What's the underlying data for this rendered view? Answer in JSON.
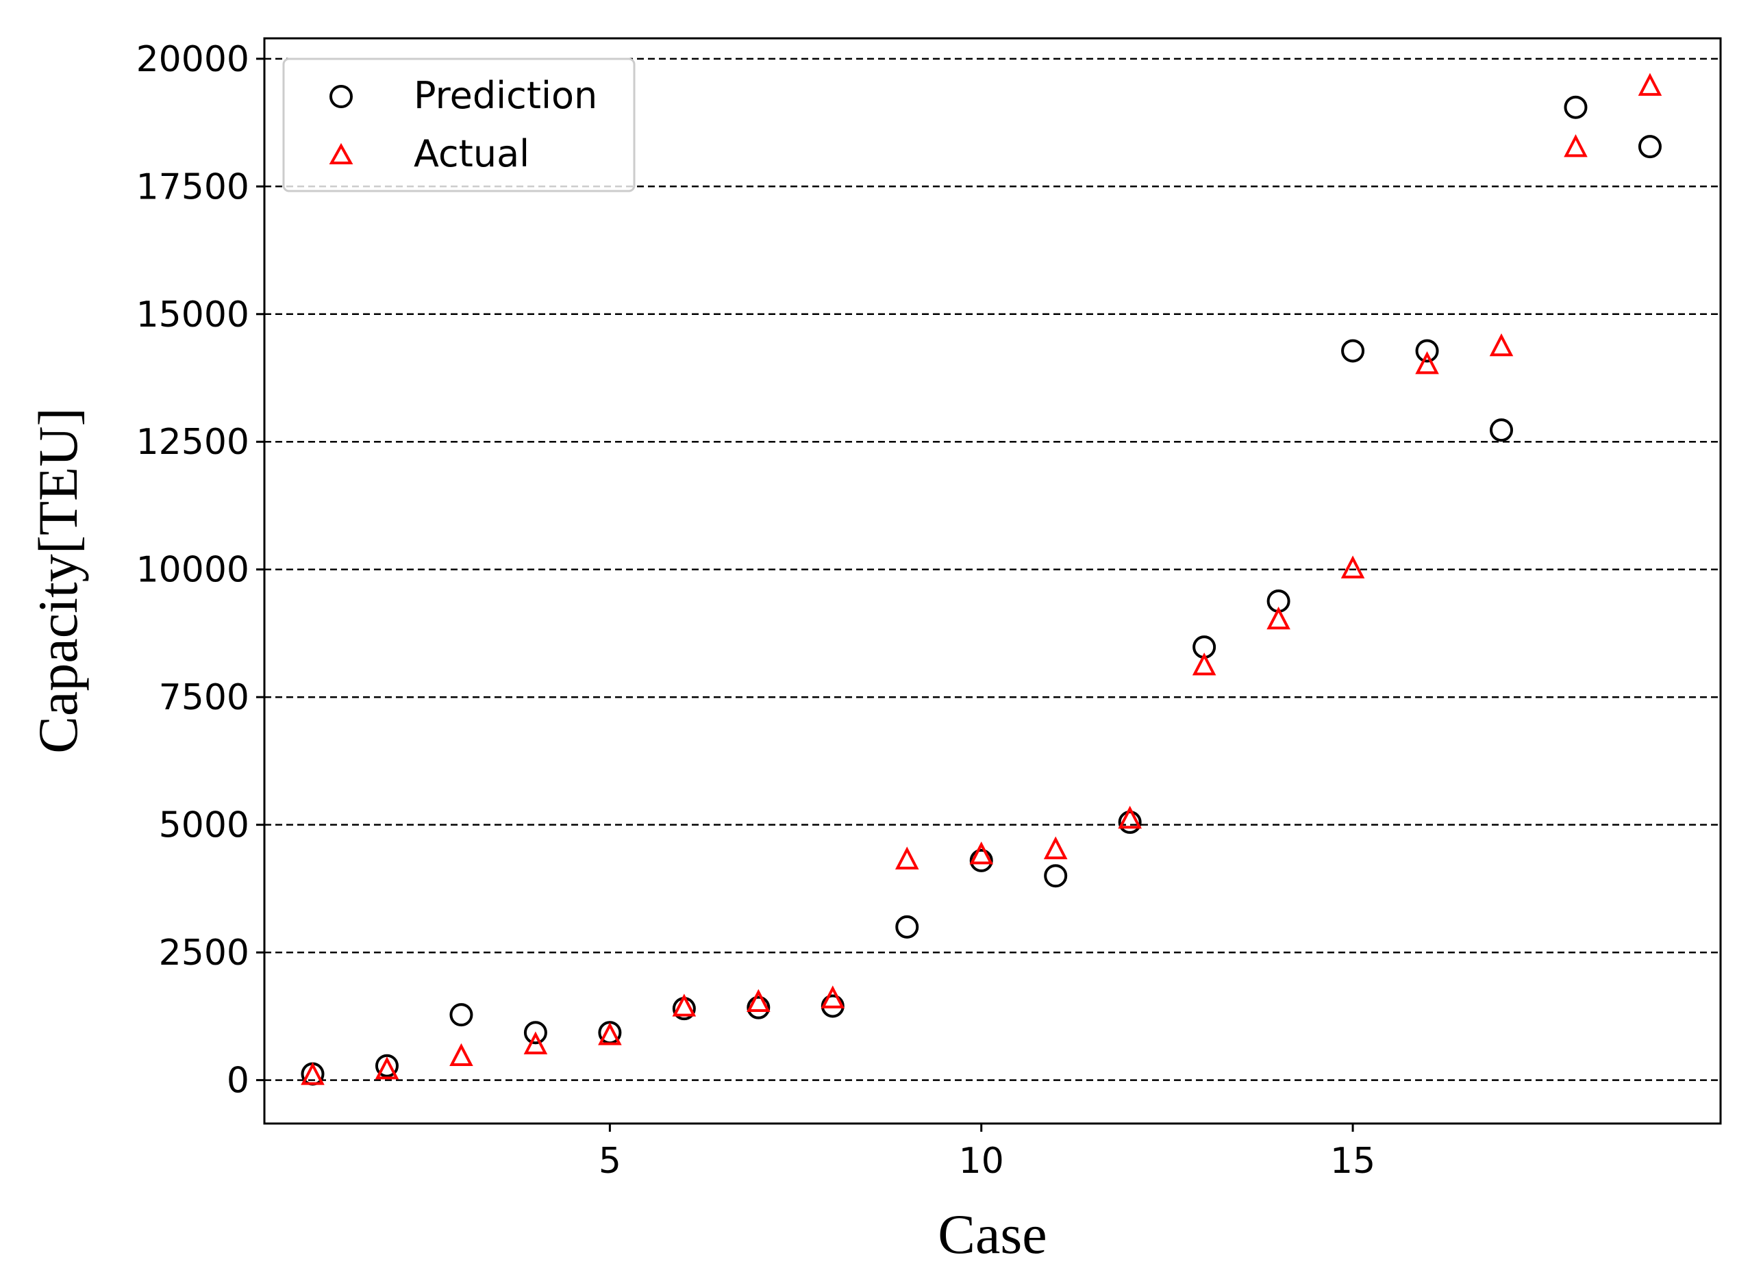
{
  "chart_data": {
    "type": "scatter",
    "title": "",
    "xlabel": "Case",
    "ylabel": "Capacity[TEU]",
    "xlim": [
      0.35,
      19.95
    ],
    "ylim": [
      -850,
      20400
    ],
    "xticks": [
      5,
      10,
      15
    ],
    "yticks": [
      0,
      2500,
      5000,
      7500,
      10000,
      12500,
      15000,
      17500,
      20000
    ],
    "grid": "horizontal dashed",
    "legend_position": "upper-left",
    "series": [
      {
        "name": "Prediction",
        "marker": "circle",
        "color": "#000000",
        "points": [
          {
            "x": 1,
            "y": 120
          },
          {
            "x": 2,
            "y": 280
          },
          {
            "x": 3,
            "y": 1280
          },
          {
            "x": 4,
            "y": 930
          },
          {
            "x": 5,
            "y": 930
          },
          {
            "x": 6,
            "y": 1400
          },
          {
            "x": 7,
            "y": 1420
          },
          {
            "x": 8,
            "y": 1450
          },
          {
            "x": 9,
            "y": 3000
          },
          {
            "x": 10,
            "y": 4300
          },
          {
            "x": 11,
            "y": 4000
          },
          {
            "x": 12,
            "y": 5050
          },
          {
            "x": 13,
            "y": 8480
          },
          {
            "x": 14,
            "y": 9380
          },
          {
            "x": 15,
            "y": 14280
          },
          {
            "x": 16,
            "y": 14280
          },
          {
            "x": 17,
            "y": 12730
          },
          {
            "x": 18,
            "y": 19050
          },
          {
            "x": 19,
            "y": 18280
          }
        ]
      },
      {
        "name": "Actual",
        "marker": "triangle",
        "color": "#ff0000",
        "points": [
          {
            "x": 1,
            "y": 80
          },
          {
            "x": 2,
            "y": 190
          },
          {
            "x": 3,
            "y": 450
          },
          {
            "x": 4,
            "y": 680
          },
          {
            "x": 5,
            "y": 860
          },
          {
            "x": 6,
            "y": 1420
          },
          {
            "x": 7,
            "y": 1510
          },
          {
            "x": 8,
            "y": 1580
          },
          {
            "x": 9,
            "y": 4300
          },
          {
            "x": 10,
            "y": 4400
          },
          {
            "x": 11,
            "y": 4500
          },
          {
            "x": 12,
            "y": 5100
          },
          {
            "x": 13,
            "y": 8100
          },
          {
            "x": 14,
            "y": 9000
          },
          {
            "x": 15,
            "y": 10000
          },
          {
            "x": 16,
            "y": 14000
          },
          {
            "x": 17,
            "y": 14350
          },
          {
            "x": 18,
            "y": 18250
          },
          {
            "x": 19,
            "y": 19450
          }
        ]
      }
    ]
  }
}
